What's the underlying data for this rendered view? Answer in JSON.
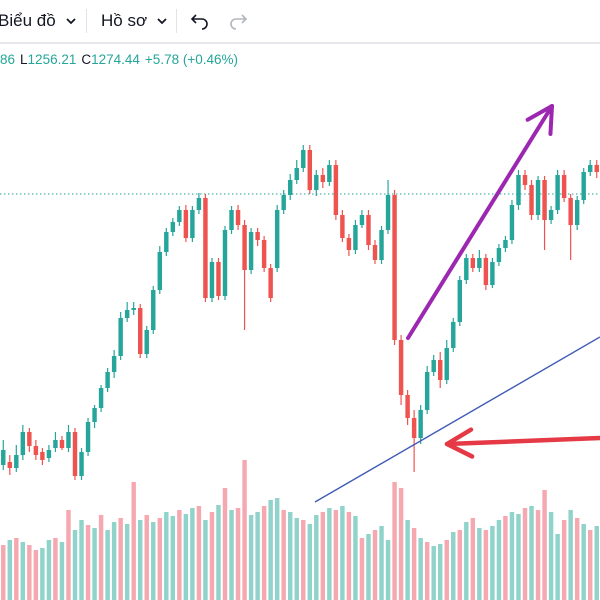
{
  "toolbar": {
    "chart_menu_label": "Biểu đồ",
    "profile_menu_label": "Hồ sơ"
  },
  "legend": {
    "open_tail": "86",
    "low_label": "L",
    "low_value": "1256.21",
    "close_label": "C",
    "close_value": "1274.44",
    "change": "+5.78 (+0.46%)"
  },
  "colors": {
    "up": "#26a69a",
    "down": "#ef5350",
    "volume_up": "#8fd3ca",
    "volume_down": "#f6a8b0",
    "trendline": "#3f5bb5",
    "arrow_purple": "#9c27b0",
    "arrow_red": "#e53945",
    "price_line": "#26a69a"
  },
  "icons": [
    "chevron-down-icon",
    "undo-icon",
    "redo-icon"
  ],
  "chart_data": {
    "type": "candlestick",
    "candles": [
      [
        465,
        450,
        440,
        470
      ],
      [
        462,
        468,
        455,
        475
      ],
      [
        468,
        455,
        445,
        472
      ],
      [
        455,
        432,
        425,
        460
      ],
      [
        432,
        446,
        428,
        452
      ],
      [
        446,
        455,
        440,
        460
      ],
      [
        452,
        460,
        448,
        465
      ],
      [
        458,
        450,
        445,
        462
      ],
      [
        448,
        440,
        432,
        452
      ],
      [
        440,
        448,
        436,
        450
      ],
      [
        448,
        432,
        425,
        452
      ],
      [
        432,
        476,
        428,
        480
      ],
      [
        476,
        452,
        448,
        480
      ],
      [
        452,
        422,
        418,
        456
      ],
      [
        422,
        408,
        405,
        428
      ],
      [
        408,
        388,
        385,
        412
      ],
      [
        388,
        372,
        368,
        392
      ],
      [
        372,
        356,
        350,
        378
      ],
      [
        356,
        318,
        312,
        360
      ],
      [
        318,
        310,
        302,
        322
      ],
      [
        310,
        308,
        302,
        315
      ],
      [
        308,
        354,
        304,
        358
      ],
      [
        354,
        330,
        326,
        358
      ],
      [
        330,
        290,
        286,
        334
      ],
      [
        290,
        252,
        246,
        294
      ],
      [
        252,
        232,
        228,
        256
      ],
      [
        232,
        222,
        218,
        236
      ],
      [
        222,
        210,
        206,
        226
      ],
      [
        210,
        238,
        205,
        242
      ],
      [
        238,
        210,
        206,
        242
      ],
      [
        210,
        198,
        193,
        214
      ],
      [
        198,
        298,
        194,
        302
      ],
      [
        298,
        262,
        258,
        302
      ],
      [
        262,
        296,
        258,
        300
      ],
      [
        296,
        230,
        226,
        300
      ],
      [
        230,
        210,
        206,
        234
      ],
      [
        210,
        225,
        205,
        230
      ],
      [
        225,
        270,
        220,
        330
      ],
      [
        270,
        232,
        228,
        274
      ],
      [
        232,
        240,
        228,
        246
      ],
      [
        240,
        268,
        236,
        272
      ],
      [
        268,
        298,
        264,
        302
      ],
      [
        268,
        210,
        205,
        272
      ],
      [
        210,
        195,
        190,
        214
      ],
      [
        195,
        180,
        174,
        200
      ],
      [
        180,
        168,
        160,
        184
      ],
      [
        168,
        150,
        145,
        172
      ],
      [
        150,
        190,
        145,
        194
      ],
      [
        190,
        175,
        170,
        196
      ],
      [
        175,
        182,
        168,
        188
      ],
      [
        182,
        165,
        160,
        186
      ],
      [
        165,
        215,
        160,
        220
      ],
      [
        215,
        238,
        210,
        242
      ],
      [
        238,
        250,
        234,
        256
      ],
      [
        250,
        225,
        220,
        254
      ],
      [
        225,
        215,
        210,
        228
      ],
      [
        215,
        245,
        210,
        250
      ],
      [
        245,
        260,
        240,
        264
      ],
      [
        260,
        230,
        226,
        264
      ],
      [
        230,
        195,
        180,
        234
      ],
      [
        195,
        340,
        190,
        345
      ],
      [
        340,
        395,
        335,
        405
      ],
      [
        395,
        418,
        390,
        425
      ],
      [
        418,
        438,
        410,
        472
      ],
      [
        438,
        410,
        405,
        444
      ],
      [
        410,
        372,
        366,
        414
      ],
      [
        372,
        360,
        355,
        376
      ],
      [
        360,
        380,
        352,
        388
      ],
      [
        380,
        348,
        340,
        384
      ],
      [
        348,
        322,
        318,
        352
      ],
      [
        322,
        280,
        276,
        326
      ],
      [
        280,
        258,
        254,
        284
      ],
      [
        258,
        268,
        254,
        272
      ],
      [
        268,
        258,
        250,
        272
      ],
      [
        258,
        285,
        254,
        290
      ],
      [
        285,
        262,
        258,
        288
      ],
      [
        262,
        248,
        244,
        266
      ],
      [
        248,
        240,
        236,
        252
      ],
      [
        240,
        205,
        200,
        244
      ],
      [
        205,
        175,
        170,
        210
      ],
      [
        175,
        185,
        170,
        190
      ],
      [
        185,
        215,
        180,
        220
      ],
      [
        215,
        180,
        176,
        220
      ],
      [
        180,
        220,
        176,
        250
      ],
      [
        220,
        210,
        206,
        224
      ],
      [
        210,
        175,
        170,
        214
      ],
      [
        175,
        198,
        170,
        202
      ],
      [
        198,
        225,
        194,
        260
      ],
      [
        225,
        200,
        196,
        230
      ],
      [
        200,
        172,
        168,
        204
      ],
      [
        172,
        165,
        160,
        176
      ],
      [
        165,
        172,
        160,
        178
      ]
    ],
    "volume": [
      [
        55,
        "d"
      ],
      [
        60,
        "u"
      ],
      [
        62,
        "d"
      ],
      [
        58,
        "u"
      ],
      [
        55,
        "d"
      ],
      [
        50,
        "d"
      ],
      [
        52,
        "u"
      ],
      [
        60,
        "u"
      ],
      [
        62,
        "d"
      ],
      [
        58,
        "u"
      ],
      [
        90,
        "d"
      ],
      [
        70,
        "u"
      ],
      [
        80,
        "u"
      ],
      [
        75,
        "d"
      ],
      [
        72,
        "u"
      ],
      [
        85,
        "d"
      ],
      [
        70,
        "u"
      ],
      [
        78,
        "u"
      ],
      [
        82,
        "d"
      ],
      [
        76,
        "u"
      ],
      [
        118,
        "d"
      ],
      [
        80,
        "u"
      ],
      [
        85,
        "d"
      ],
      [
        78,
        "u"
      ],
      [
        82,
        "d"
      ],
      [
        88,
        "u"
      ],
      [
        84,
        "u"
      ],
      [
        90,
        "d"
      ],
      [
        86,
        "u"
      ],
      [
        92,
        "u"
      ],
      [
        94,
        "d"
      ],
      [
        80,
        "u"
      ],
      [
        88,
        "d"
      ],
      [
        95,
        "u"
      ],
      [
        112,
        "d"
      ],
      [
        90,
        "u"
      ],
      [
        92,
        "d"
      ],
      [
        140,
        "d"
      ],
      [
        85,
        "u"
      ],
      [
        88,
        "u"
      ],
      [
        94,
        "d"
      ],
      [
        100,
        "u"
      ],
      [
        102,
        "u"
      ],
      [
        90,
        "d"
      ],
      [
        88,
        "u"
      ],
      [
        82,
        "u"
      ],
      [
        80,
        "d"
      ],
      [
        76,
        "u"
      ],
      [
        85,
        "u"
      ],
      [
        88,
        "d"
      ],
      [
        92,
        "u"
      ],
      [
        90,
        "d"
      ],
      [
        94,
        "u"
      ],
      [
        88,
        "d"
      ],
      [
        84,
        "u"
      ],
      [
        62,
        "d"
      ],
      [
        66,
        "u"
      ],
      [
        70,
        "d"
      ],
      [
        74,
        "u"
      ],
      [
        60,
        "u"
      ],
      [
        118,
        "d"
      ],
      [
        112,
        "d"
      ],
      [
        80,
        "u"
      ],
      [
        72,
        "d"
      ],
      [
        62,
        "u"
      ],
      [
        58,
        "d"
      ],
      [
        54,
        "u"
      ],
      [
        56,
        "u"
      ],
      [
        60,
        "d"
      ],
      [
        68,
        "u"
      ],
      [
        70,
        "d"
      ],
      [
        78,
        "u"
      ],
      [
        82,
        "d"
      ],
      [
        72,
        "u"
      ],
      [
        70,
        "d"
      ],
      [
        74,
        "u"
      ],
      [
        80,
        "u"
      ],
      [
        84,
        "d"
      ],
      [
        88,
        "u"
      ],
      [
        86,
        "u"
      ],
      [
        92,
        "d"
      ],
      [
        94,
        "u"
      ],
      [
        90,
        "d"
      ],
      [
        110,
        "d"
      ],
      [
        88,
        "u"
      ],
      [
        66,
        "u"
      ],
      [
        80,
        "d"
      ],
      [
        90,
        "u"
      ],
      [
        82,
        "d"
      ],
      [
        76,
        "u"
      ],
      [
        70,
        "d"
      ],
      [
        74,
        "u"
      ]
    ],
    "dotted_price_level": 194,
    "trendline": [
      [
        315,
        502
      ],
      [
        600,
        337
      ]
    ],
    "purple_arrow": [
      [
        408,
        338
      ],
      [
        552,
        106
      ]
    ],
    "red_arrow": [
      [
        600,
        438
      ],
      [
        447,
        444
      ]
    ]
  }
}
